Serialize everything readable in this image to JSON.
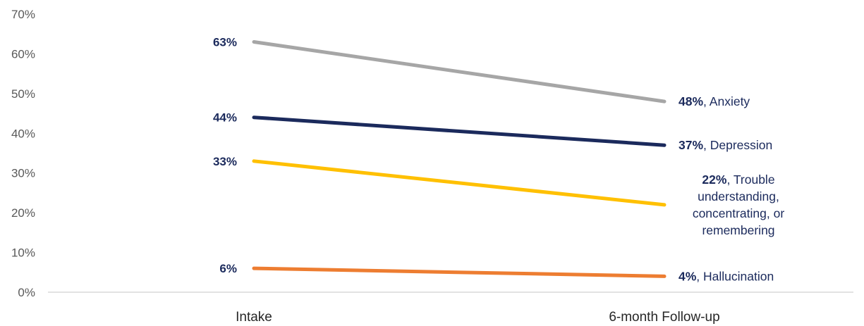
{
  "chart_data": {
    "type": "line",
    "categories": [
      "Intake",
      "6-month Follow-up"
    ],
    "ylim": [
      0,
      70
    ],
    "yticks": [
      "0%",
      "10%",
      "20%",
      "30%",
      "40%",
      "50%",
      "60%",
      "70%"
    ],
    "grid": false,
    "legend": "none",
    "series": [
      {
        "name": "Anxiety",
        "values": [
          63,
          48
        ],
        "start_label": "63%",
        "end_value_label": "48%",
        "end_name_lines": [
          ", Anxiety"
        ],
        "color": "#a6a6a6"
      },
      {
        "name": "Depression",
        "values": [
          44,
          37
        ],
        "start_label": "44%",
        "end_value_label": "37%",
        "end_name_lines": [
          ", Depression"
        ],
        "color": "#1b2a5c"
      },
      {
        "name": "Trouble understanding, concentrating, or remembering",
        "values": [
          33,
          22
        ],
        "start_label": "33%",
        "end_value_label": "22%",
        "end_name_lines": [
          ", Trouble",
          "understanding,",
          "concentrating, or",
          "remembering"
        ],
        "color": "#ffc000"
      },
      {
        "name": "Hallucination",
        "values": [
          6,
          4
        ],
        "start_label": "6%",
        "end_value_label": "4%",
        "end_name_lines": [
          ", Hallucination"
        ],
        "color": "#ed7d31"
      }
    ]
  }
}
